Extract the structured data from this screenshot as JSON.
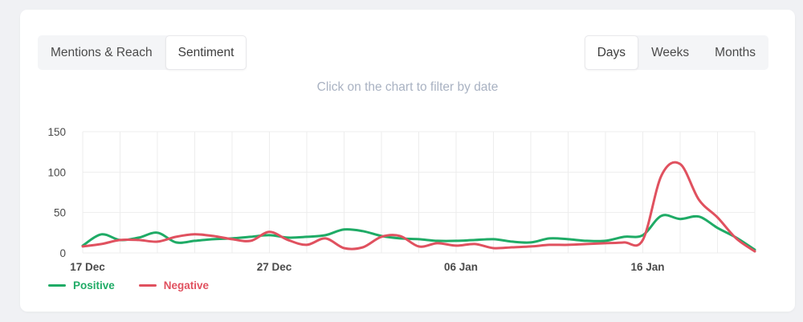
{
  "toolbar": {
    "view_toggle": {
      "options": [
        {
          "label": "Mentions & Reach",
          "active": false
        },
        {
          "label": "Sentiment",
          "active": true
        }
      ]
    },
    "period_toggle": {
      "options": [
        {
          "label": "Days",
          "active": true
        },
        {
          "label": "Weeks",
          "active": false
        },
        {
          "label": "Months",
          "active": false
        }
      ]
    }
  },
  "hint": "Click on the chart to filter by date",
  "chart_data": {
    "type": "line",
    "title": "",
    "xlabel": "",
    "ylabel": "",
    "x_tick_labels": [
      "17 Dec",
      "27 Dec",
      "06 Jan",
      "16 Jan"
    ],
    "x_tick_days": [
      0,
      10,
      20,
      30
    ],
    "x_range_days": [
      0,
      36
    ],
    "y_ticks": [
      0,
      50,
      100,
      150
    ],
    "ylim": [
      0,
      150
    ],
    "grid": {
      "on": true,
      "vertical_every_days": 2,
      "color": "#ededed"
    },
    "legend_position": "bottom-left",
    "series": [
      {
        "name": "Positive",
        "color": "#1fab66",
        "values": [
          9,
          23,
          16,
          19,
          25,
          13,
          15,
          17,
          18,
          20,
          22,
          19,
          20,
          22,
          29,
          27,
          21,
          18,
          17,
          15,
          15,
          16,
          17,
          14,
          13,
          18,
          17,
          15,
          15,
          20,
          22,
          46,
          42,
          45,
          31,
          19,
          4
        ]
      },
      {
        "name": "Negative",
        "color": "#e0515f",
        "values": [
          8,
          11,
          16,
          16,
          14,
          20,
          23,
          21,
          17,
          15,
          26,
          16,
          10,
          18,
          6,
          7,
          20,
          21,
          8,
          12,
          9,
          11,
          6,
          7,
          8,
          10,
          10,
          11,
          12,
          13,
          16,
          96,
          110,
          66,
          44,
          18,
          2
        ]
      }
    ],
    "axis_text_color": "#4a4a4a"
  },
  "legend": [
    {
      "label": "Positive",
      "color": "#1fab66"
    },
    {
      "label": "Negative",
      "color": "#e0515f"
    }
  ]
}
